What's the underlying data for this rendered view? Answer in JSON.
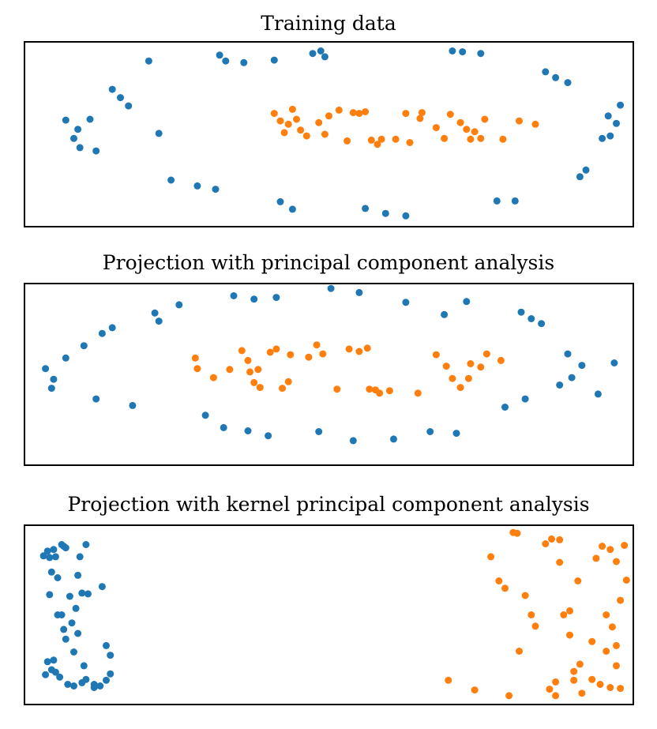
{
  "colors": {
    "outer_ring": "#1f77b4",
    "inner_ring": "#ff7f0e",
    "frame": "#000000"
  },
  "chart_data": [
    {
      "type": "scatter",
      "title": "Training data",
      "xlabel": "",
      "ylabel": "",
      "xlim": [
        -1.5,
        1.5
      ],
      "ylim": [
        -1.1,
        1.1
      ],
      "grid": false,
      "axes_ticks": false,
      "series": [
        {
          "color": "#1f77b4",
          "points": [
            [
              -1.3,
              0.17
            ],
            [
              -1.26,
              -0.05
            ],
            [
              -1.23,
              -0.16
            ],
            [
              -1.24,
              0.06
            ],
            [
              -1.18,
              0.18
            ],
            [
              -1.15,
              -0.2
            ],
            [
              -1.07,
              0.54
            ],
            [
              -1.03,
              0.44
            ],
            [
              -0.99,
              0.34
            ],
            [
              -0.89,
              0.88
            ],
            [
              -0.84,
              0.01
            ],
            [
              -0.78,
              -0.55
            ],
            [
              -0.65,
              -0.62
            ],
            [
              -0.56,
              -0.66
            ],
            [
              -0.54,
              0.95
            ],
            [
              -0.51,
              0.88
            ],
            [
              -0.42,
              0.86
            ],
            [
              -0.27,
              0.89
            ],
            [
              -0.24,
              -0.81
            ],
            [
              -0.18,
              -0.9
            ],
            [
              -0.08,
              0.97
            ],
            [
              -0.04,
              1.0
            ],
            [
              -0.02,
              0.93
            ],
            [
              0.18,
              -0.89
            ],
            [
              0.28,
              -0.95
            ],
            [
              0.38,
              -0.98
            ],
            [
              0.61,
              1.0
            ],
            [
              0.66,
              0.99
            ],
            [
              0.75,
              0.97
            ],
            [
              0.83,
              -0.8
            ],
            [
              0.92,
              -0.8
            ],
            [
              1.07,
              0.75
            ],
            [
              1.12,
              0.68
            ],
            [
              1.18,
              0.62
            ],
            [
              1.24,
              -0.51
            ],
            [
              1.27,
              -0.43
            ],
            [
              1.35,
              -0.05
            ],
            [
              1.38,
              0.22
            ],
            [
              1.39,
              -0.02
            ],
            [
              1.42,
              0.13
            ],
            [
              1.44,
              0.35
            ]
          ]
        },
        {
          "color": "#ff7f0e",
          "points": [
            [
              -0.27,
              0.25
            ],
            [
              -0.24,
              0.16
            ],
            [
              -0.22,
              0.02
            ],
            [
              -0.2,
              0.12
            ],
            [
              -0.18,
              0.3
            ],
            [
              -0.16,
              0.18
            ],
            [
              -0.14,
              0.05
            ],
            [
              -0.11,
              -0.02
            ],
            [
              -0.05,
              0.14
            ],
            [
              -0.02,
              0.0
            ],
            [
              0.0,
              0.22
            ],
            [
              0.05,
              0.29
            ],
            [
              0.09,
              -0.08
            ],
            [
              0.12,
              0.26
            ],
            [
              0.15,
              0.25
            ],
            [
              0.18,
              0.27
            ],
            [
              0.21,
              -0.07
            ],
            [
              0.24,
              -0.12
            ],
            [
              0.26,
              -0.06
            ],
            [
              0.33,
              -0.06
            ],
            [
              0.38,
              0.25
            ],
            [
              0.4,
              -0.1
            ],
            [
              0.45,
              0.19
            ],
            [
              0.46,
              0.26
            ],
            [
              0.53,
              0.08
            ],
            [
              0.57,
              -0.05
            ],
            [
              0.6,
              0.24
            ],
            [
              0.65,
              0.14
            ],
            [
              0.68,
              0.06
            ],
            [
              0.7,
              -0.06
            ],
            [
              0.72,
              0.03
            ],
            [
              0.75,
              -0.05
            ],
            [
              0.77,
              0.18
            ],
            [
              0.86,
              -0.06
            ],
            [
              0.94,
              0.16
            ],
            [
              1.02,
              0.12
            ]
          ]
        }
      ]
    },
    {
      "type": "scatter",
      "title": "Projection with principal component analysis",
      "xlabel": "",
      "ylabel": "",
      "xlim": [
        -1.5,
        1.5
      ],
      "ylim": [
        -1.1,
        1.1
      ],
      "grid": false,
      "axes_ticks": false,
      "series": [
        {
          "color": "#1f77b4",
          "points": [
            [
              -1.4,
              0.07
            ],
            [
              -1.37,
              -0.17
            ],
            [
              -1.36,
              -0.06
            ],
            [
              -1.3,
              0.2
            ],
            [
              -1.21,
              0.35
            ],
            [
              -1.15,
              -0.3
            ],
            [
              -1.12,
              0.5
            ],
            [
              -1.07,
              0.57
            ],
            [
              -0.97,
              -0.38
            ],
            [
              -0.86,
              0.75
            ],
            [
              -0.84,
              0.65
            ],
            [
              -0.74,
              0.85
            ],
            [
              -0.61,
              -0.5
            ],
            [
              -0.52,
              -0.65
            ],
            [
              -0.47,
              0.96
            ],
            [
              -0.4,
              -0.69
            ],
            [
              -0.37,
              0.92
            ],
            [
              -0.3,
              -0.75
            ],
            [
              -0.26,
              0.94
            ],
            [
              -0.05,
              -0.7
            ],
            [
              0.01,
              1.05
            ],
            [
              0.12,
              -0.81
            ],
            [
              0.15,
              1.0
            ],
            [
              0.32,
              -0.79
            ],
            [
              0.38,
              0.88
            ],
            [
              0.5,
              -0.7
            ],
            [
              0.57,
              0.73
            ],
            [
              0.63,
              -0.72
            ],
            [
              0.68,
              0.89
            ],
            [
              0.87,
              -0.4
            ],
            [
              0.95,
              0.76
            ],
            [
              0.97,
              -0.3
            ],
            [
              1.0,
              0.68
            ],
            [
              1.05,
              0.62
            ],
            [
              1.14,
              -0.13
            ],
            [
              1.18,
              0.25
            ],
            [
              1.2,
              -0.04
            ],
            [
              1.25,
              0.11
            ],
            [
              1.33,
              -0.24
            ],
            [
              1.41,
              0.14
            ]
          ]
        },
        {
          "color": "#ff7f0e",
          "points": [
            [
              -0.66,
              0.2
            ],
            [
              -0.65,
              0.07
            ],
            [
              -0.57,
              -0.04
            ],
            [
              -0.49,
              0.06
            ],
            [
              -0.43,
              0.29
            ],
            [
              -0.4,
              0.17
            ],
            [
              -0.39,
              0.03
            ],
            [
              -0.37,
              -0.1
            ],
            [
              -0.35,
              0.06
            ],
            [
              -0.34,
              -0.16
            ],
            [
              -0.29,
              0.27
            ],
            [
              -0.26,
              0.31
            ],
            [
              -0.23,
              -0.17
            ],
            [
              -0.2,
              -0.09
            ],
            [
              -0.19,
              0.24
            ],
            [
              -0.1,
              0.21
            ],
            [
              -0.06,
              0.36
            ],
            [
              -0.03,
              0.25
            ],
            [
              0.04,
              -0.18
            ],
            [
              0.1,
              0.31
            ],
            [
              0.15,
              0.28
            ],
            [
              0.19,
              0.32
            ],
            [
              0.2,
              -0.18
            ],
            [
              0.23,
              -0.19
            ],
            [
              0.25,
              -0.23
            ],
            [
              0.3,
              -0.2
            ],
            [
              0.44,
              -0.23
            ],
            [
              0.53,
              0.24
            ],
            [
              0.58,
              0.1
            ],
            [
              0.61,
              -0.05
            ],
            [
              0.65,
              -0.16
            ],
            [
              0.69,
              -0.05
            ],
            [
              0.7,
              0.13
            ],
            [
              0.75,
              0.09
            ],
            [
              0.78,
              0.25
            ],
            [
              0.85,
              0.17
            ]
          ]
        }
      ]
    },
    {
      "type": "scatter",
      "title": "Projection with kernel principal component analysis",
      "xlabel": "",
      "ylabel": "",
      "xlim": [
        -1.5,
        1.5
      ],
      "ylim": [
        -1.1,
        1.1
      ],
      "grid": false,
      "axes_ticks": false,
      "series": [
        {
          "color": "#1f77b4",
          "points": [
            [
              -1.41,
              0.73
            ],
            [
              -1.4,
              -0.74
            ],
            [
              -1.39,
              0.79
            ],
            [
              -1.39,
              -0.58
            ],
            [
              -1.38,
              0.71
            ],
            [
              -1.38,
              0.25
            ],
            [
              -1.37,
              0.53
            ],
            [
              -1.37,
              -0.68
            ],
            [
              -1.36,
              0.81
            ],
            [
              -1.36,
              -0.56
            ],
            [
              -1.35,
              0.72
            ],
            [
              -1.35,
              -0.71
            ],
            [
              -1.34,
              0.46
            ],
            [
              -1.34,
              0.0
            ],
            [
              -1.33,
              -0.77
            ],
            [
              -1.32,
              0.87
            ],
            [
              -1.32,
              0.0
            ],
            [
              -1.31,
              0.85
            ],
            [
              -1.31,
              -0.18
            ],
            [
              -1.3,
              0.83
            ],
            [
              -1.3,
              -0.3
            ],
            [
              -1.29,
              -0.86
            ],
            [
              -1.28,
              0.23
            ],
            [
              -1.27,
              -0.1
            ],
            [
              -1.26,
              -0.88
            ],
            [
              -1.26,
              -0.46
            ],
            [
              -1.25,
              0.08
            ],
            [
              -1.24,
              0.49
            ],
            [
              -1.24,
              -0.23
            ],
            [
              -1.23,
              0.72
            ],
            [
              -1.22,
              0.27
            ],
            [
              -1.22,
              -0.84
            ],
            [
              -1.21,
              -0.63
            ],
            [
              -1.2,
              0.87
            ],
            [
              -1.2,
              -0.8
            ],
            [
              -1.19,
              0.26
            ],
            [
              -1.16,
              -0.86
            ],
            [
              -1.16,
              -0.9
            ],
            [
              -1.13,
              -0.88
            ],
            [
              -1.12,
              0.35
            ],
            [
              -1.1,
              -0.38
            ],
            [
              -1.1,
              -0.81
            ],
            [
              -1.08,
              -0.73
            ],
            [
              -1.08,
              -0.5
            ]
          ]
        },
        {
          "color": "#ff7f0e",
          "points": [
            [
              0.59,
              -0.81
            ],
            [
              0.72,
              -0.93
            ],
            [
              0.8,
              0.72
            ],
            [
              0.84,
              0.42
            ],
            [
              0.87,
              0.33
            ],
            [
              0.89,
              -1.0
            ],
            [
              0.91,
              1.02
            ],
            [
              0.93,
              1.01
            ],
            [
              0.94,
              -0.45
            ],
            [
              0.97,
              0.24
            ],
            [
              1.0,
              0.0
            ],
            [
              1.02,
              -0.14
            ],
            [
              1.07,
              0.88
            ],
            [
              1.09,
              -0.92
            ],
            [
              1.1,
              0.94
            ],
            [
              1.12,
              -0.83
            ],
            [
              1.12,
              -1.0
            ],
            [
              1.14,
              0.65
            ],
            [
              1.14,
              0.93
            ],
            [
              1.16,
              0.0
            ],
            [
              1.19,
              0.05
            ],
            [
              1.19,
              -0.25
            ],
            [
              1.21,
              -0.81
            ],
            [
              1.21,
              -0.7
            ],
            [
              1.23,
              0.42
            ],
            [
              1.24,
              -0.61
            ],
            [
              1.25,
              -0.97
            ],
            [
              1.3,
              -0.33
            ],
            [
              1.3,
              -0.8
            ],
            [
              1.32,
              0.7
            ],
            [
              1.34,
              -0.86
            ],
            [
              1.35,
              0.85
            ],
            [
              1.37,
              -0.45
            ],
            [
              1.37,
              0.0
            ],
            [
              1.39,
              0.81
            ],
            [
              1.39,
              -0.9
            ],
            [
              1.4,
              -0.15
            ],
            [
              1.42,
              0.66
            ],
            [
              1.42,
              -0.38
            ],
            [
              1.42,
              -0.63
            ],
            [
              1.44,
              -0.91
            ],
            [
              1.44,
              0.18
            ],
            [
              1.46,
              0.86
            ],
            [
              1.47,
              0.43
            ]
          ]
        }
      ]
    }
  ]
}
